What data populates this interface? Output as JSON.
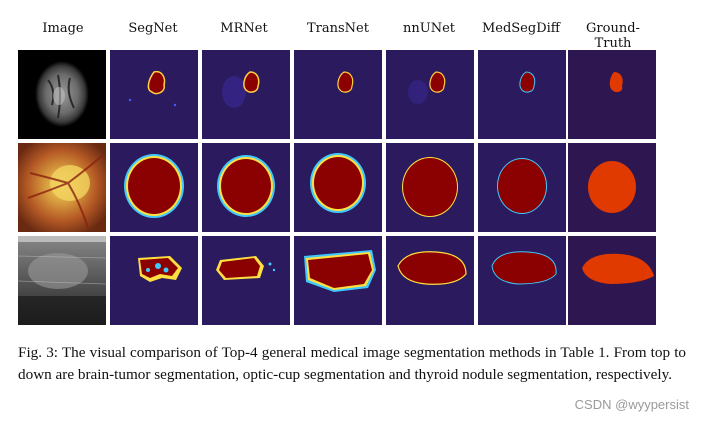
{
  "figure": {
    "columns": [
      "Image",
      "SegNet",
      "MRNet",
      "TransNet",
      "nnUNet",
      "MedSegDiff",
      "Ground-Truth"
    ],
    "rows": [
      {
        "task": "brain-tumor",
        "input_desc": "brain MRI"
      },
      {
        "task": "optic-cup",
        "input_desc": "fundus photo"
      },
      {
        "task": "thyroid-nodule",
        "input_desc": "ultrasound"
      }
    ],
    "colors": {
      "background_blue": "#2b1a5e",
      "prediction_red": "#8b0000",
      "ground_truth_red": "#e03a00",
      "ground_truth_bg": "#2e1650",
      "edge_cyan": "#40c8ff",
      "edge_yellow": "#ffe040"
    }
  },
  "caption": {
    "label": "Fig. 3:",
    "text": "The visual comparison of Top-4 general medical image segmentation methods in Table 1. From top to down are brain-tumor segmentation, optic-cup segmentation and thyroid nodule segmentation, respectively."
  },
  "watermark": "CSDN @wyypersist"
}
